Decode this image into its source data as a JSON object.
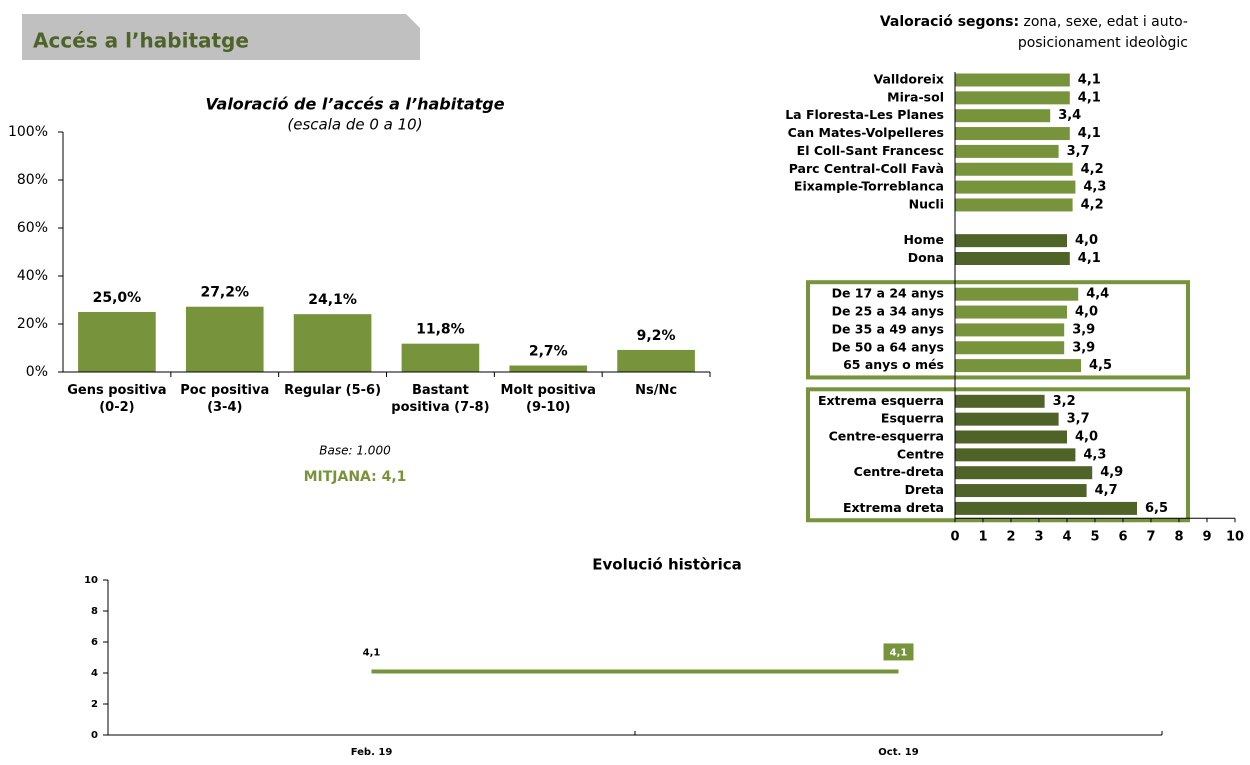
{
  "header": {
    "title": "Accés a l’habitatge"
  },
  "chart_data": [
    {
      "type": "bar",
      "title": "Valoració de l’accés a l’habitatge",
      "subtitle": "(escala de 0 a 10)",
      "categories": [
        "Gens positiva (0-2)",
        "Poc positiva (3-4)",
        "Regular (5-6)",
        "Bastant positiva (7-8)",
        "Molt positiva (9-10)",
        "Ns/Nc"
      ],
      "values": [
        25.0,
        27.2,
        24.1,
        11.8,
        2.7,
        9.2
      ],
      "value_labels": [
        "25,0%",
        "27,2%",
        "24,1%",
        "11,8%",
        "2,7%",
        "9,2%"
      ],
      "color": "#77933c",
      "ylim": [
        0,
        100
      ],
      "yticks": [
        {
          "value": 0,
          "label": "0%"
        },
        {
          "value": 20,
          "label": "20%"
        },
        {
          "value": 40,
          "label": "40%"
        },
        {
          "value": 60,
          "label": "60%"
        },
        {
          "value": 80,
          "label": "80%"
        },
        {
          "value": 100,
          "label": "100%"
        }
      ],
      "notes": [
        "Base: 1.000",
        "MITJANA: 4,1"
      ]
    },
    {
      "type": "barh",
      "title": "Valoració segons:",
      "subtitle": "zona, sexe, edat i auto-posicionament ideològic",
      "groups": [
        {
          "categories": [
            "Valldoreix",
            "Mira-sol",
            "La Floresta-Les Planes",
            "Can Mates-Volpelleres",
            "El Coll-Sant Francesc",
            "Parc Central-Coll Favà",
            "Eixample-Torreblanca",
            "Nucli"
          ],
          "values": [
            4.1,
            4.1,
            3.4,
            4.1,
            3.7,
            4.2,
            4.3,
            4.2
          ],
          "value_labels": [
            "4,1",
            "4,1",
            "3,4",
            "4,1",
            "3,7",
            "4,2",
            "4,3",
            "4,2"
          ],
          "color": "#77933c",
          "boxed": false
        },
        {
          "categories": [
            "Home",
            "Dona"
          ],
          "values": [
            4.0,
            4.1
          ],
          "value_labels": [
            "4,0",
            "4,1"
          ],
          "color": "#4f6228",
          "boxed": false
        },
        {
          "categories": [
            "De 17 a 24 anys",
            "De 25 a 34 anys",
            "De 35 a 49 anys",
            "De 50 a 64 anys",
            "65 anys o més"
          ],
          "values": [
            4.4,
            4.0,
            3.9,
            3.9,
            4.5
          ],
          "value_labels": [
            "4,4",
            "4,0",
            "3,9",
            "3,9",
            "4,5"
          ],
          "color": "#77933c",
          "boxed": true
        },
        {
          "categories": [
            "Extrema esquerra",
            "Esquerra",
            "Centre-esquerra",
            "Centre",
            "Centre-dreta",
            "Dreta",
            "Extrema dreta"
          ],
          "values": [
            3.2,
            3.7,
            4.0,
            4.3,
            4.9,
            4.7,
            6.5
          ],
          "value_labels": [
            "3,2",
            "3,7",
            "4,0",
            "4,3",
            "4,9",
            "4,7",
            "6,5"
          ],
          "color": "#4f6228",
          "boxed": true
        }
      ],
      "xlim": [
        0,
        10
      ],
      "xticks": [
        0,
        1,
        2,
        3,
        4,
        5,
        6,
        7,
        8,
        9,
        10
      ]
    },
    {
      "type": "line",
      "title": "Evolució històrica",
      "categories": [
        "Feb. 19",
        "Oct. 19"
      ],
      "values": [
        4.1,
        4.1
      ],
      "value_labels": [
        "4,1",
        "4,1"
      ],
      "color": "#77933c",
      "ylim": [
        0,
        10
      ],
      "yticks": [
        0,
        2,
        4,
        6,
        8,
        10
      ]
    }
  ]
}
